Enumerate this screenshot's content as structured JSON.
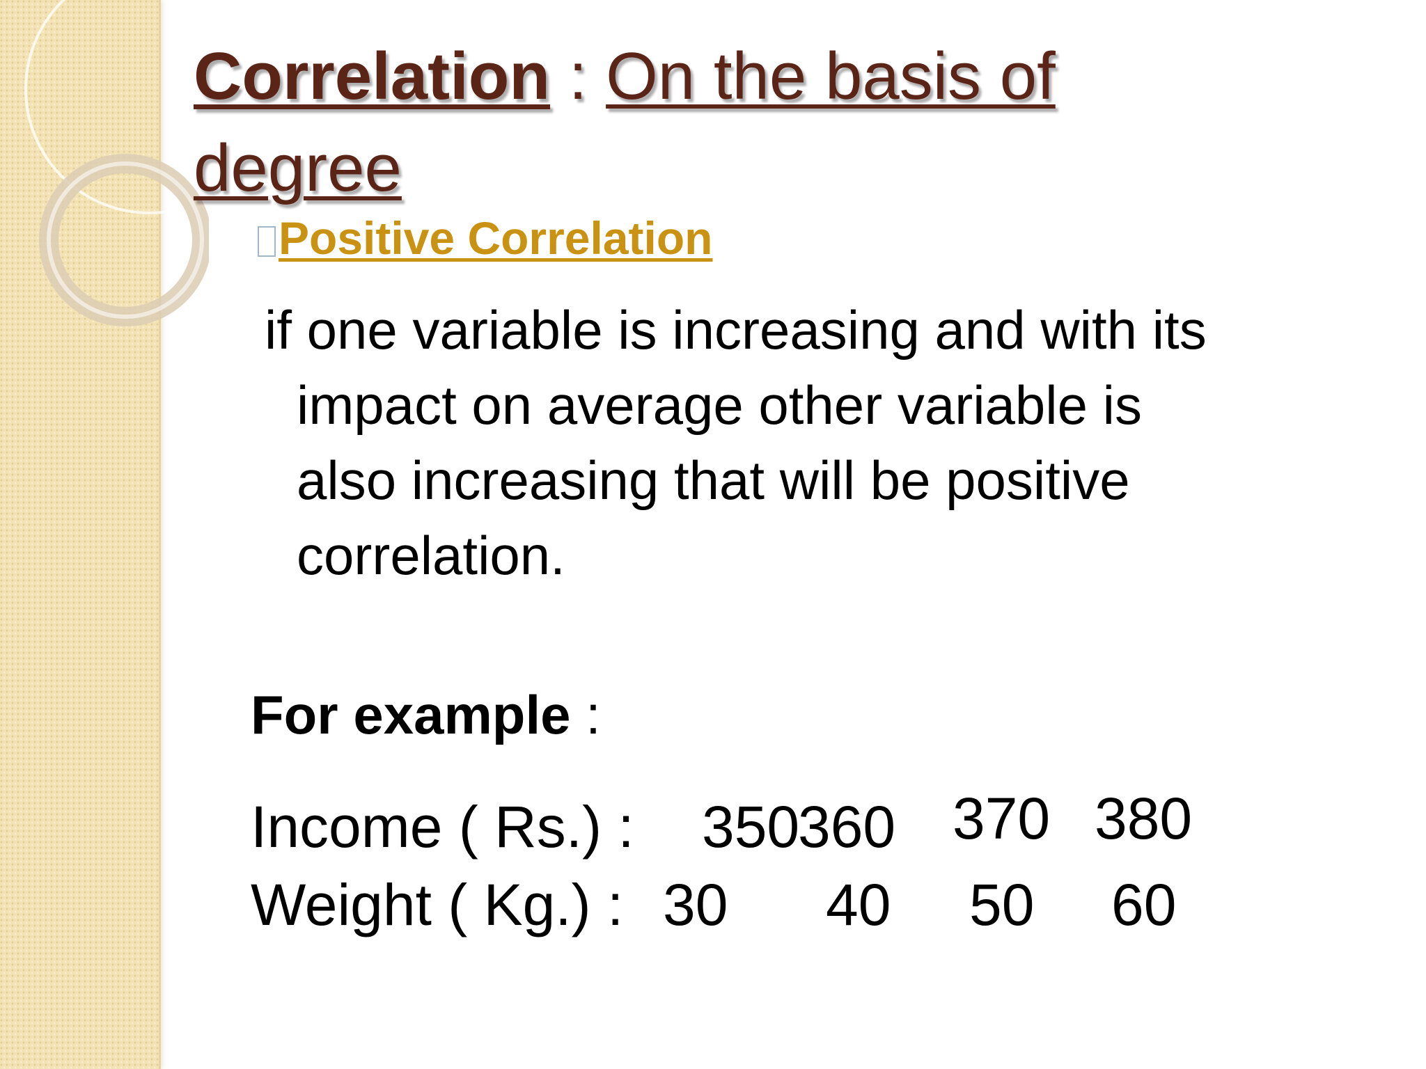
{
  "slide": {
    "title_bold": "Correlation",
    "title_sep": " : ",
    "title_rest": "On the basis of degree",
    "subheading": "Positive Correlation",
    "body_line1": "if one variable is increasing and with its",
    "body_line2": "impact on average other variable is",
    "body_line3": "also increasing that will be positive",
    "body_line4": "correlation.",
    "example_bold": "For example",
    "example_colon": " :",
    "income_label": "Income ( Rs.) :",
    "income_values": [
      "350",
      "360",
      "370",
      "380"
    ],
    "weight_label": "Weight ( Kg.) :",
    "weight_values": [
      "30",
      "40",
      "50",
      "60"
    ]
  },
  "colors": {
    "title": "#5a2416",
    "subheading": "#c99212",
    "sidebar": "#f3e2b4"
  }
}
